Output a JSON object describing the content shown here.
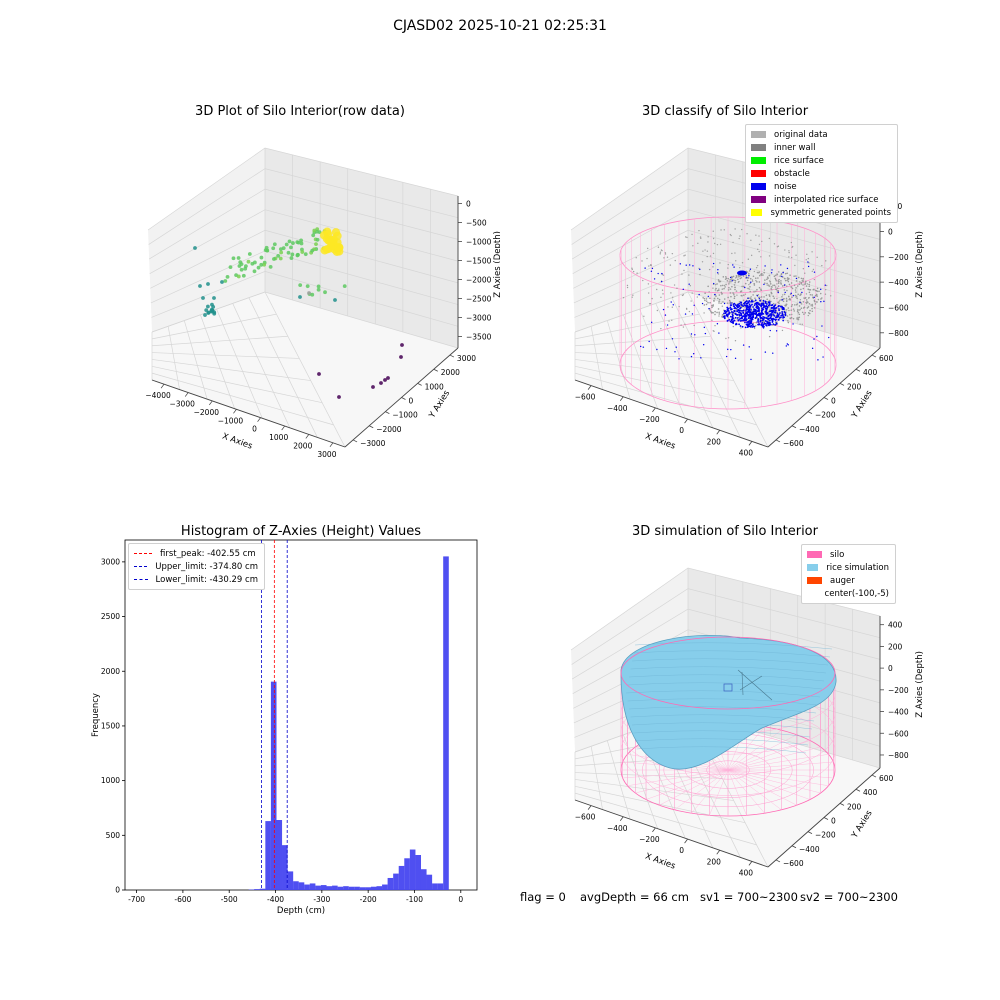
{
  "figure": {
    "suptitle": "CJASD02 2025-10-21 02:25:31"
  },
  "status": {
    "flag": "flag = 0",
    "avg_depth": "avgDepth = 66 cm",
    "sv1": "sv1 = 700~2300",
    "sv2": "sv2 = 700~2300"
  },
  "chart_data": [
    {
      "type": "scatter",
      "title": "3D Plot of Silo Interior(row data)",
      "xlabel": "X Axies",
      "ylabel": "Y Axies",
      "zlabel": "Z Axies (Depth)",
      "x_ticks": [
        "−4000",
        "−3000",
        "−2000",
        "−1000",
        "0",
        "1000",
        "2000",
        "3000"
      ],
      "y_ticks": [
        "−3000",
        "−2000",
        "−1000",
        "0",
        "1000",
        "2000",
        "3000"
      ],
      "z_ticks": [
        "0",
        "−500",
        "−1000",
        "−1500",
        "−2000",
        "−2500",
        "−3000",
        "−3500"
      ],
      "colormap": [
        "#440154",
        "#3b528b",
        "#21918c",
        "#5ec962",
        "#fde725"
      ]
    },
    {
      "type": "scatter",
      "title": "3D classify of Silo Interior",
      "xlabel": "X Axies",
      "ylabel": "Y Axies",
      "zlabel": "Z Axies (Depth)",
      "x_ticks": [
        "−600",
        "−400",
        "−200",
        "0",
        "200",
        "400"
      ],
      "y_ticks": [
        "−600",
        "−400",
        "−200",
        "0",
        "200",
        "400",
        "600"
      ],
      "z_ticks": [
        "200",
        "0",
        "−200",
        "−400",
        "−600",
        "−800"
      ],
      "legend": [
        {
          "label": "original data",
          "color": "#b0b0b0"
        },
        {
          "label": "inner wall",
          "color": "#808080"
        },
        {
          "label": "rice surface",
          "color": "#00ee00"
        },
        {
          "label": "obstacle",
          "color": "#ff0000"
        },
        {
          "label": "noise",
          "color": "#0000ee"
        },
        {
          "label": "interpolated rice surface",
          "color": "#800080"
        },
        {
          "label": "symmetric generated points",
          "color": "#ffff00"
        }
      ]
    },
    {
      "type": "bar",
      "title": "Histogram of Z-Axies (Height) Values",
      "xlabel": "Depth (cm)",
      "ylabel": "Frequency",
      "xlim": [
        -725,
        35
      ],
      "ylim": [
        0,
        3200
      ],
      "x_ticks": [
        -700,
        -600,
        -500,
        -400,
        -300,
        -200,
        -100,
        0
      ],
      "y_ticks": [
        0,
        500,
        1000,
        1500,
        2000,
        2500,
        3000
      ],
      "bin_width": 12.1,
      "bar_color": "#4646f0",
      "bins": [
        {
          "x": -458,
          "v": 4
        },
        {
          "x": -446,
          "v": 8
        },
        {
          "x": -434,
          "v": 12
        },
        {
          "x": -422,
          "v": 630
        },
        {
          "x": -410,
          "v": 1905
        },
        {
          "x": -398,
          "v": 640
        },
        {
          "x": -386,
          "v": 410
        },
        {
          "x": -374,
          "v": 170
        },
        {
          "x": -362,
          "v": 80
        },
        {
          "x": -350,
          "v": 70
        },
        {
          "x": -338,
          "v": 50
        },
        {
          "x": -326,
          "v": 60
        },
        {
          "x": -314,
          "v": 40
        },
        {
          "x": -302,
          "v": 45
        },
        {
          "x": -290,
          "v": 35
        },
        {
          "x": -278,
          "v": 40
        },
        {
          "x": -266,
          "v": 30
        },
        {
          "x": -254,
          "v": 35
        },
        {
          "x": -242,
          "v": 30
        },
        {
          "x": -230,
          "v": 30
        },
        {
          "x": -218,
          "v": 25
        },
        {
          "x": -206,
          "v": 25
        },
        {
          "x": -194,
          "v": 30
        },
        {
          "x": -182,
          "v": 35
        },
        {
          "x": -170,
          "v": 50
        },
        {
          "x": -158,
          "v": 110
        },
        {
          "x": -146,
          "v": 150
        },
        {
          "x": -134,
          "v": 220
        },
        {
          "x": -122,
          "v": 290
        },
        {
          "x": -110,
          "v": 370
        },
        {
          "x": -98,
          "v": 320
        },
        {
          "x": -86,
          "v": 190
        },
        {
          "x": -74,
          "v": 140
        },
        {
          "x": -62,
          "v": 60
        },
        {
          "x": -50,
          "v": 60
        },
        {
          "x": -38,
          "v": 3050
        }
      ],
      "vlines": [
        {
          "label": "first_peak: -402.55 cm",
          "x": -402.55,
          "color": "#ff0000"
        },
        {
          "label": "Upper_limit: -374.80 cm",
          "x": -374.8,
          "color": "#0000cc"
        },
        {
          "label": "Lower_limit: -430.29 cm",
          "x": -430.29,
          "color": "#0000cc"
        }
      ],
      "legend_position": "upper-left"
    },
    {
      "type": "surface",
      "title": "3D simulation of Silo Interior",
      "xlabel": "X Axies",
      "ylabel": "Y Axies",
      "zlabel": "Z Axies (Depth)",
      "x_ticks": [
        "−600",
        "−400",
        "−200",
        "0",
        "200",
        "400"
      ],
      "y_ticks": [
        "−600",
        "−400",
        "−200",
        "0",
        "200",
        "400",
        "600"
      ],
      "z_ticks": [
        "400",
        "200",
        "0",
        "−200",
        "−400",
        "−600",
        "−800"
      ],
      "legend": [
        {
          "label": "silo",
          "color": "#ff69b4"
        },
        {
          "label": "rice simulation",
          "color": "#87ceeb"
        },
        {
          "label": "auger",
          "color": "#ff4500"
        },
        {
          "label": "center(-100,-5)",
          "color": "#ffffff"
        }
      ]
    }
  ]
}
